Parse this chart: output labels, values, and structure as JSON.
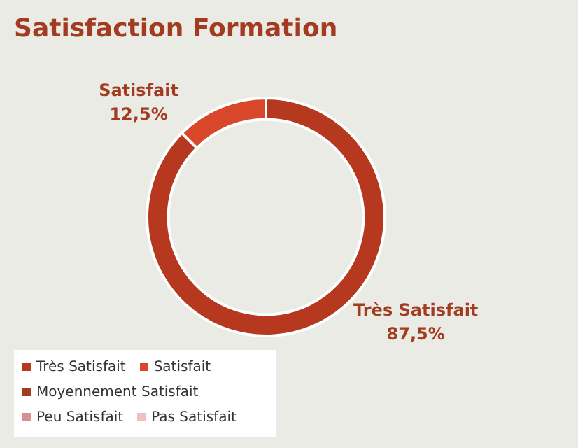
{
  "chart_data": {
    "type": "donut",
    "title": "Satisfaction Formation",
    "categories": [
      "Très Satisfait",
      "Satisfait",
      "Moyennement Satisfait",
      "Peu Satisfait",
      "Pas Satisfait"
    ],
    "values": [
      87.5,
      12.5,
      0,
      0,
      0
    ],
    "colors": [
      "#b5381f",
      "#d9472b",
      "#a33b20",
      "#d99090",
      "#efc0c0"
    ],
    "value_labels": [
      "87,5%",
      "12,5%",
      null,
      null,
      null
    ],
    "legend": "bottom left"
  }
}
